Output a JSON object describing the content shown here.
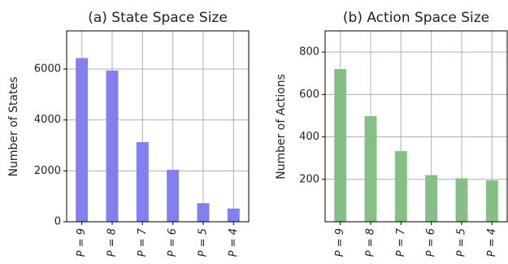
{
  "chart_data": [
    {
      "type": "bar",
      "title": "(a) State Space Size",
      "xlabel": "",
      "ylabel": "Number of States",
      "categories": [
        "P = 9",
        "P = 8",
        "P = 7",
        "P = 6",
        "P = 5",
        "P = 4"
      ],
      "values": [
        6430,
        5940,
        3130,
        2040,
        730,
        520
      ],
      "ylim": [
        0,
        7500
      ],
      "yticks": [
        0,
        2000,
        4000,
        6000
      ],
      "grid": true,
      "color": "#8080f0"
    },
    {
      "type": "bar",
      "title": "(b) Action Space Size",
      "xlabel": "",
      "ylabel": "Number of Actions",
      "categories": [
        "P = 9",
        "P = 8",
        "P = 7",
        "P = 6",
        "P = 5",
        "P = 4"
      ],
      "values": [
        720,
        498,
        333,
        220,
        205,
        195
      ],
      "ylim": [
        0,
        900
      ],
      "yticks": [
        200,
        400,
        600,
        800
      ],
      "grid": true,
      "color": "#85bf85"
    }
  ]
}
